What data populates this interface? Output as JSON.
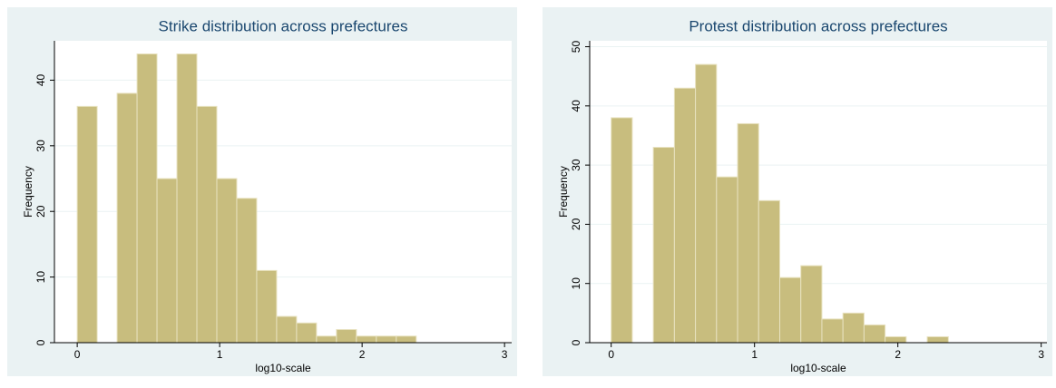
{
  "chart_data": [
    {
      "type": "histogram",
      "title": "Strike distribution across prefectures",
      "x_label": "log10-scale",
      "y_label": "Frequency",
      "bins": [
        0,
        0.14,
        0.28,
        0.42,
        0.56,
        0.7,
        0.84,
        0.98,
        1.12,
        1.26,
        1.4,
        1.54,
        1.68,
        1.82,
        1.96,
        2.1,
        2.24,
        2.38
      ],
      "values": [
        36,
        0,
        38,
        44,
        25,
        44,
        36,
        25,
        22,
        11,
        4,
        3,
        1,
        2,
        1,
        1,
        1
      ],
      "color": "#c8bd7e",
      "xlim": [
        -0.16,
        3.05
      ],
      "ylim": [
        0,
        46
      ],
      "xticks": [
        0,
        1,
        2,
        3
      ],
      "yticks": [
        0,
        10,
        20,
        30,
        40
      ],
      "grid": true
    },
    {
      "type": "histogram",
      "title": "Protest distribution across prefectures",
      "x_label": "log10-scale",
      "y_label": "Frequency",
      "bins": [
        0,
        0.147,
        0.294,
        0.441,
        0.588,
        0.735,
        0.882,
        1.029,
        1.176,
        1.323,
        1.47,
        1.617,
        1.764,
        1.911,
        2.058,
        2.205,
        2.352
      ],
      "values": [
        38,
        0,
        33,
        43,
        47,
        28,
        37,
        24,
        11,
        13,
        4,
        5,
        3,
        1,
        0,
        1
      ],
      "color": "#c8bd7e",
      "xlim": [
        -0.15,
        3.04
      ],
      "ylim": [
        0,
        51
      ],
      "xticks": [
        0,
        1,
        2,
        3
      ],
      "yticks": [
        0,
        10,
        20,
        30,
        40,
        50
      ],
      "grid": true
    }
  ]
}
